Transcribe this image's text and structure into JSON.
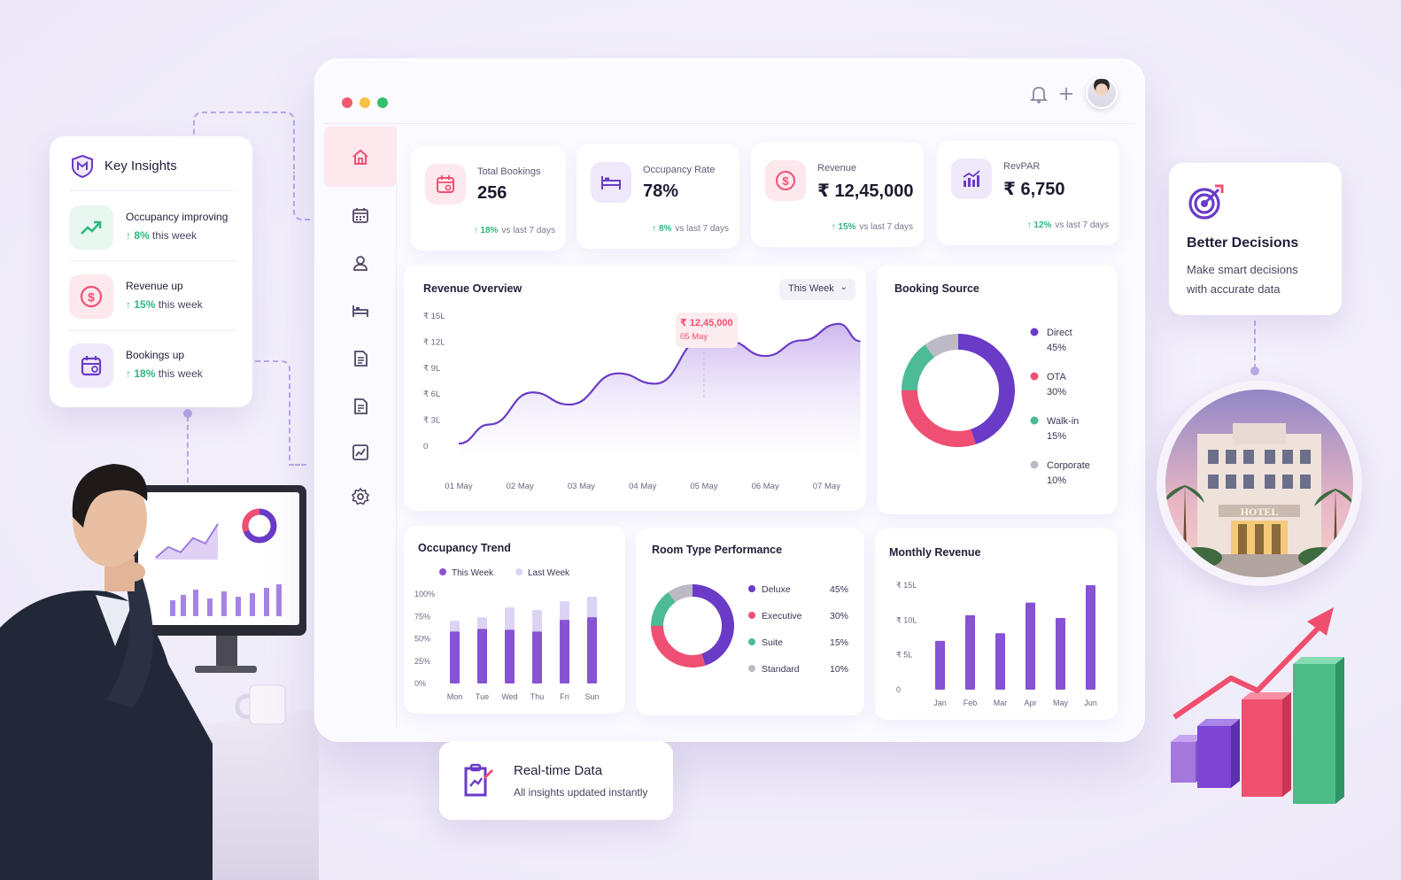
{
  "window": {
    "traffic_colors": [
      "#f25b6b",
      "#f7c244",
      "#34c06a"
    ],
    "bell_icon": "bell-icon",
    "plus_icon": "plus-icon"
  },
  "sidebar": {
    "items": [
      {
        "icon": "home-icon",
        "active": true
      },
      {
        "icon": "calendar-icon",
        "active": false
      },
      {
        "icon": "user-icon",
        "active": false
      },
      {
        "icon": "bed-icon",
        "active": false
      },
      {
        "icon": "document-icon",
        "active": false
      },
      {
        "icon": "report-icon",
        "active": false
      },
      {
        "icon": "analytics-icon",
        "active": false
      },
      {
        "icon": "gear-icon",
        "active": false
      }
    ]
  },
  "stats": [
    {
      "label": "Total Bookings",
      "value": "256",
      "delta": "18%",
      "delta_suffix": "vs last 7 days",
      "icon": "calendar-icon",
      "color": "#ef4f72"
    },
    {
      "label": "Occupancy Rate",
      "value": "78%",
      "delta": "8%",
      "delta_suffix": "vs last 7 days",
      "icon": "bed-icon",
      "color": "#6a3bc7"
    },
    {
      "label": "Revenue",
      "value": "₹ 12,45,000",
      "delta": "15%",
      "delta_suffix": "vs last 7 days",
      "icon": "dollar-icon",
      "color": "#ef4f72"
    },
    {
      "label": "RevPAR",
      "value": "₹ 6,750",
      "delta": "12%",
      "delta_suffix": "vs last 7 days",
      "icon": "bar-chart-icon",
      "color": "#6a3bc7"
    }
  ],
  "revenue_overview": {
    "title": "Revenue Overview",
    "period_select": "This Week",
    "tooltip_value": "₹ 12,45,000",
    "tooltip_date": "05 May"
  },
  "booking_source": {
    "title": "Booking Source"
  },
  "occupancy_trend": {
    "title": "Occupancy Trend"
  },
  "room_type": {
    "title": "Room Type Performance"
  },
  "monthly_revenue": {
    "title": "Monthly Revenue"
  },
  "insights": {
    "title": "Key Insights",
    "items": [
      {
        "title": "Occupancy improving",
        "delta": "8%",
        "suffix": "this week",
        "icon": "trend-up-icon",
        "color": "#2fb77f"
      },
      {
        "title": "Revenue up",
        "delta": "15%",
        "suffix": "this week",
        "icon": "dollar-icon",
        "color": "#ef4f72"
      },
      {
        "title": "Bookings up",
        "delta": "18%",
        "suffix": "this week",
        "icon": "calendar-icon",
        "color": "#6a3bc7"
      }
    ]
  },
  "better_decisions": {
    "title": "Better Decisions",
    "line1": "Make smart decisions",
    "line2": "with accurate data"
  },
  "realtime": {
    "title": "Real-time Data",
    "subtitle": "All insights updated instantly"
  },
  "hotel_sign": "HOTEL",
  "chart_data": [
    {
      "type": "area",
      "title": "Revenue Overview",
      "x": [
        "01 May",
        "02 May",
        "03 May",
        "04 May",
        "05 May",
        "06 May",
        "07 May"
      ],
      "y_ticks": [
        "₹ 15L",
        "₹ 12L",
        "₹ 9L",
        "₹ 6L",
        "₹ 3L",
        "0"
      ],
      "ylim": [
        0,
        15
      ],
      "curve": [
        [
          0,
          0.3
        ],
        [
          0.5,
          2.5
        ],
        [
          1.2,
          6.2
        ],
        [
          1.8,
          4.8
        ],
        [
          2.6,
          8.4
        ],
        [
          3.2,
          7.2
        ],
        [
          4.0,
          12.45
        ],
        [
          4.4,
          12.1
        ],
        [
          5.0,
          10.4
        ],
        [
          5.6,
          12.2
        ],
        [
          6.2,
          14.1
        ],
        [
          6.55,
          12.1
        ]
      ],
      "highlight": {
        "x": 4.0,
        "y": 12.45,
        "label": "₹ 12,45,000",
        "date": "05 May"
      },
      "color": "#6a3bc7"
    },
    {
      "type": "pie",
      "title": "Booking Source",
      "labels": [
        "Direct",
        "OTA",
        "Walk-in",
        "Corporate"
      ],
      "values": [
        45,
        30,
        15,
        10
      ],
      "value_labels": [
        "45%",
        "30%",
        "15%",
        "10%"
      ],
      "colors": [
        "#6a3bc7",
        "#ef4f72",
        "#4cbb96",
        "#bdbac6"
      ]
    },
    {
      "type": "bar",
      "title": "Occupancy Trend",
      "categories": [
        "Mon",
        "Tue",
        "Wed",
        "Thu",
        "Fri",
        "Sun"
      ],
      "y_ticks": [
        "100%",
        "75%",
        "50%",
        "25%",
        "0%"
      ],
      "ylim": [
        0,
        100
      ],
      "series": [
        {
          "name": "This Week",
          "values": [
            58,
            61,
            60,
            58,
            71,
            74
          ],
          "color": "#8752d3"
        },
        {
          "name": "Last Week",
          "values": [
            70,
            74,
            85,
            82,
            92,
            97
          ],
          "color": "#dcd3f2"
        }
      ]
    },
    {
      "type": "pie",
      "title": "Room Type Performance",
      "labels": [
        "Deluxe",
        "Executive",
        "Suite",
        "Standard"
      ],
      "values": [
        45,
        30,
        15,
        10
      ],
      "value_labels": [
        "45%",
        "30%",
        "15%",
        "10%"
      ],
      "colors": [
        "#6a3bc7",
        "#ef4f72",
        "#4cbb96",
        "#bdbac6"
      ]
    },
    {
      "type": "bar",
      "title": "Monthly Revenue",
      "categories": [
        "Jan",
        "Feb",
        "Mar",
        "Apr",
        "May",
        "Jun"
      ],
      "y_ticks": [
        "₹ 15L",
        "₹ 10L",
        "₹ 5L",
        "0"
      ],
      "ylim": [
        0,
        15
      ],
      "values": [
        7,
        10.7,
        8.1,
        12.5,
        10.3,
        15
      ],
      "color": "#8752d3"
    }
  ]
}
